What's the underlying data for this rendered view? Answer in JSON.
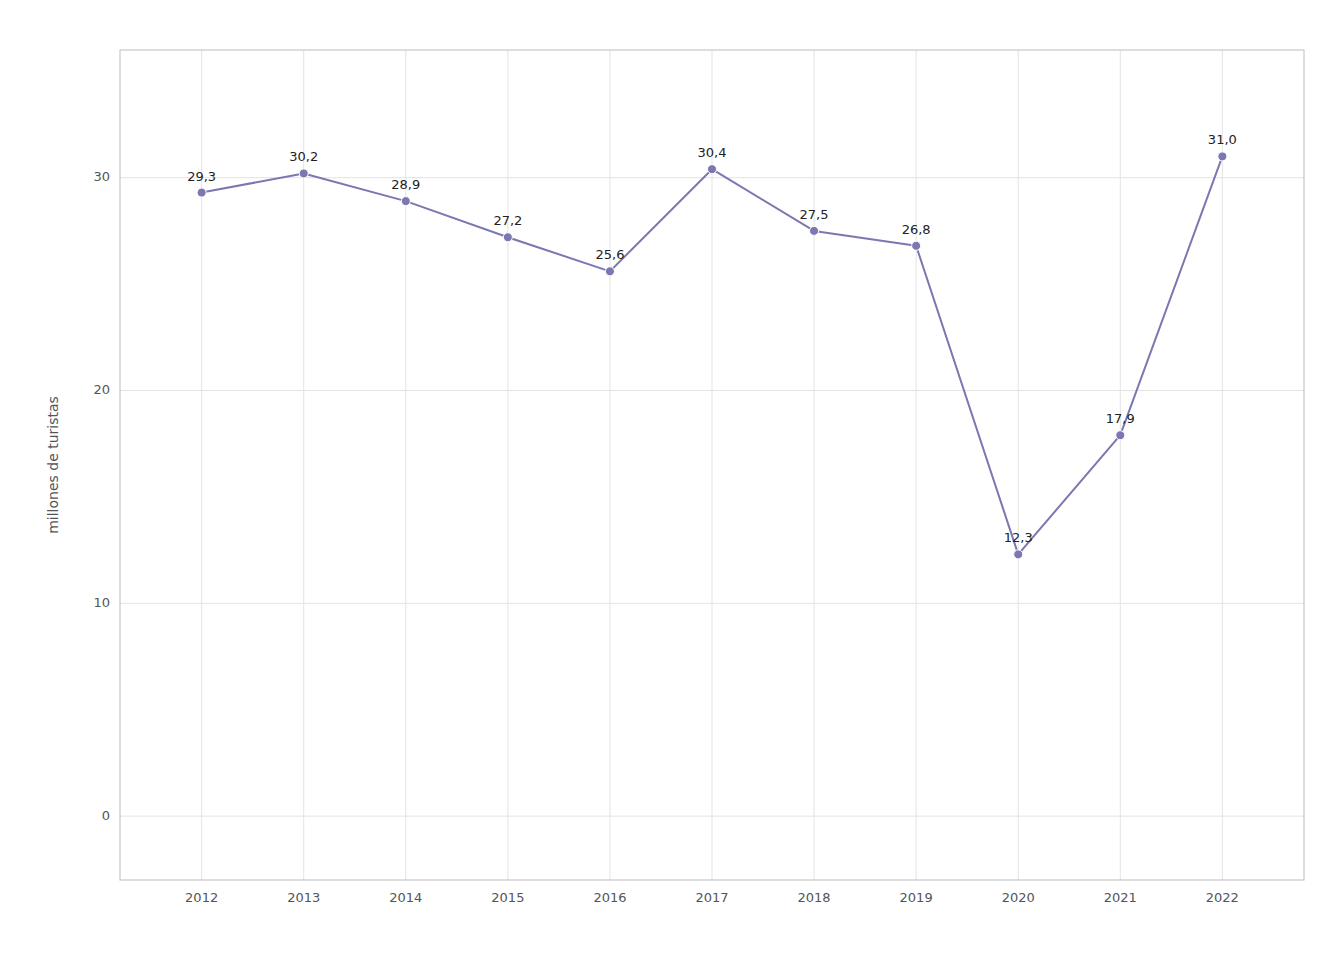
{
  "chart_data": {
    "type": "line",
    "y_label": "millones de turistas",
    "x": [
      2012,
      2013,
      2014,
      2015,
      2016,
      2017,
      2018,
      2019,
      2020,
      2021,
      2022
    ],
    "values": [
      29.3,
      30.2,
      28.9,
      27.2,
      25.6,
      30.4,
      27.5,
      26.8,
      12.3,
      17.9,
      31.0
    ],
    "value_labels": [
      "29,3",
      "30,2",
      "28,9",
      "27,2",
      "25,6",
      "30,4",
      "27,5",
      "26,8",
      "12,3",
      "17,9",
      "31,0"
    ],
    "data_labels": true,
    "color": "#7b77b0",
    "marker": "circle",
    "xlim": [
      2011.2,
      2022.8
    ],
    "xticks": [
      2012,
      2013,
      2014,
      2015,
      2016,
      2017,
      2018,
      2019,
      2020,
      2021,
      2022
    ],
    "ylim": [
      -3,
      36
    ],
    "yticks": [
      0,
      10,
      20,
      30
    ],
    "grid": true
  }
}
